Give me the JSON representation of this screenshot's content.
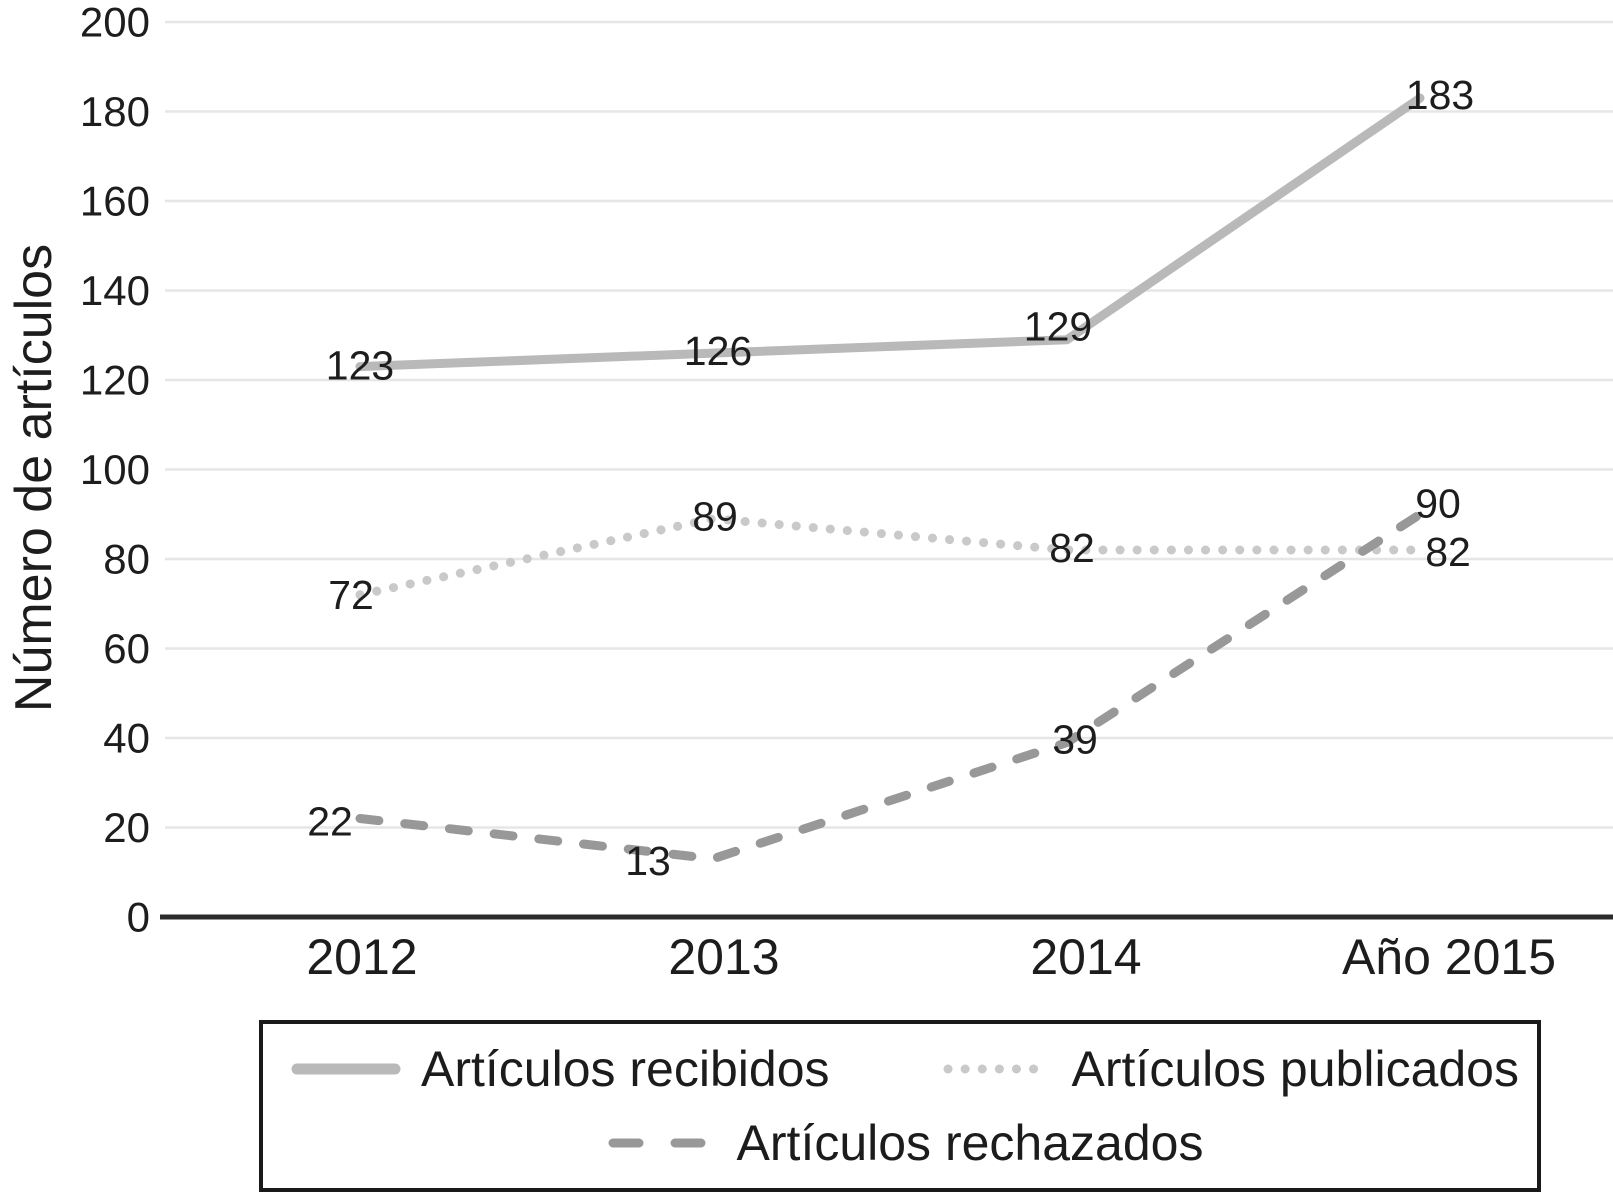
{
  "chart_data": {
    "type": "line",
    "title": "",
    "xlabel": "",
    "ylabel": "Número de artículos",
    "categories": [
      "2012",
      "2013",
      "2014",
      "Año 2015"
    ],
    "ylim": [
      0,
      200
    ],
    "ytick_step": 20,
    "grid": "horizontal",
    "legend_position": "bottom-box",
    "series": [
      {
        "name": "Artículos recibidos",
        "style": "solid",
        "color": "#b9b9b9",
        "values": [
          123,
          126,
          129,
          183
        ],
        "label_offsets": [
          [
            0,
            -1
          ],
          [
            5,
            -2
          ],
          [
            -9,
            -13
          ],
          [
            20,
            -3
          ]
        ]
      },
      {
        "name": "Artículos publicados",
        "style": "dotted",
        "color": "#c9c9c9",
        "values": [
          72,
          89,
          82,
          82
        ],
        "label_offsets": [
          [
            -9,
            0
          ],
          [
            2,
            -2
          ],
          [
            5,
            -2
          ],
          [
            28,
            2
          ]
        ]
      },
      {
        "name": "Artículos rechazados",
        "style": "dashed",
        "color": "#989898",
        "values": [
          22,
          13,
          39,
          90
        ],
        "label_offsets": [
          [
            -30,
            3
          ],
          [
            -65,
            2
          ],
          [
            8,
            -3
          ],
          [
            18,
            -11
          ]
        ]
      }
    ]
  },
  "colors": {
    "background": "#ffffff",
    "grid": "#e6e6e6",
    "axis": "#2b2b2b",
    "text": "#1d1d1d"
  }
}
